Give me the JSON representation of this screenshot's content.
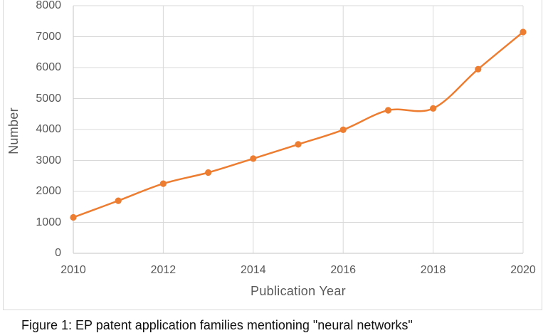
{
  "figure": {
    "caption": "Figure 1: EP patent application families mentioning \"neural networks\""
  },
  "chart_data": {
    "type": "line",
    "title": "",
    "xlabel": "Publication Year",
    "ylabel": "Number",
    "x": [
      2010,
      2011,
      2012,
      2013,
      2014,
      2015,
      2016,
      2017,
      2018,
      2019,
      2020
    ],
    "series": [
      {
        "name": "Number",
        "values": [
          1160,
          1700,
          2250,
          2610,
          3060,
          3520,
          3990,
          4620,
          4680,
          5950,
          7150
        ]
      }
    ],
    "xticks": [
      2010,
      2012,
      2014,
      2016,
      2018,
      2020
    ],
    "yticks": [
      0,
      1000,
      2000,
      3000,
      4000,
      5000,
      6000,
      7000,
      8000
    ],
    "xlim": [
      2010,
      2020
    ],
    "ylim": [
      0,
      8000
    ],
    "grid": true,
    "smooth": true,
    "marker": "circle",
    "legend_position": "none"
  },
  "colors": {
    "line": "#ED7D31",
    "grid": "#d9d9d9",
    "axis": "#c6c6c6",
    "tick_label": "#595959",
    "border": "#d9d9d9",
    "caption": "#111111"
  }
}
